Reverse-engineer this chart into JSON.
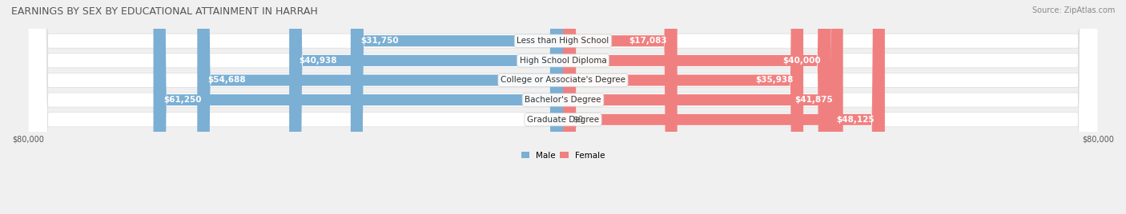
{
  "title": "EARNINGS BY SEX BY EDUCATIONAL ATTAINMENT IN HARRAH",
  "source": "Source: ZipAtlas.com",
  "categories": [
    "Less than High School",
    "High School Diploma",
    "College or Associate's Degree",
    "Bachelor's Degree",
    "Graduate Degree"
  ],
  "male_values": [
    31750,
    40938,
    54688,
    61250,
    0
  ],
  "female_values": [
    17083,
    40000,
    35938,
    41875,
    48125
  ],
  "male_color": "#7bafd4",
  "female_color": "#f08080",
  "male_color_light": "#a8c8e8",
  "female_color_light": "#f4a0b0",
  "axis_max": 80000,
  "male_label": "Male",
  "female_label": "Female",
  "bar_height": 0.55,
  "background_color": "#f0f0f0",
  "row_bg_color": "#ffffff",
  "title_fontsize": 9,
  "label_fontsize": 7.5,
  "tick_fontsize": 7,
  "source_fontsize": 7
}
